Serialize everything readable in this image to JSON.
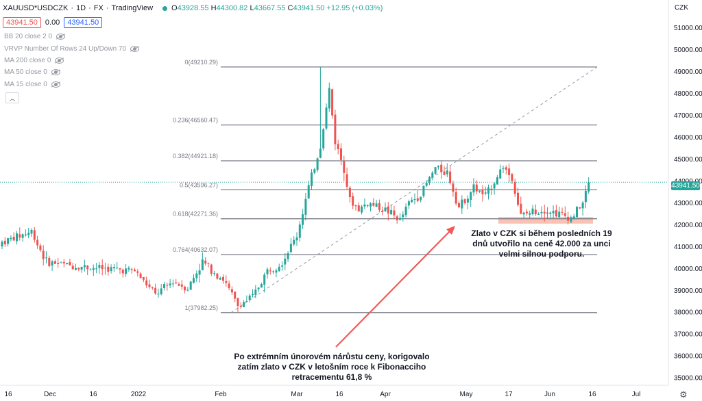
{
  "header": {
    "symbol": "XAUUSD*USDCZK",
    "interval": "1D",
    "exchange": "FX",
    "source": "TradingView",
    "open_label": "O",
    "open": "43928.55",
    "high_label": "H",
    "high": "44300.82",
    "low_label": "L",
    "low": "43667.55",
    "close_label": "C",
    "close": "43941.50",
    "change": "+12.95 (+0.03%)"
  },
  "price_row": {
    "sell": "43941.50",
    "spread": "0.00",
    "buy": "43941.50"
  },
  "indicators": [
    "BB 20 close 2 0",
    "VRVP Number Of Rows 24 Up/Down 70",
    "MA 200 close 0",
    "MA 50 close 0",
    "MA 15 close 0"
  ],
  "collapse_icon": "chevron-up-icon",
  "annotations": {
    "note_right": "Zlato v CZK si během posledních 19 dnů utvořilo na ceně 42.000 za unci velmi silnou podporu.",
    "note_bottom": "Po extrémním únorovém nárůstu ceny, korigovalo zatím zlato v CZK v letošním roce k Fibonacciho retracementu 61,8 %"
  },
  "colors": {
    "up": "#26a69a",
    "down": "#ef5350",
    "fib_line": "#787b86",
    "trend": "#9598a1",
    "arrow": "#f05a5a",
    "support_zone": "rgba(244,143,120,0.55)"
  },
  "chart_data": {
    "type": "candlestick",
    "currency_label": "CZK",
    "current_price": "43941.50",
    "y_axis": {
      "ticks": [
        "51000.00",
        "50000.00",
        "49000.00",
        "48000.00",
        "47000.00",
        "46000.00",
        "45000.00",
        "44000.00",
        "43000.00",
        "42000.00",
        "41000.00",
        "40000.00",
        "39000.00",
        "38000.00",
        "37000.00",
        "36000.00",
        "35000.00"
      ],
      "ylim": [
        34800,
        51700
      ]
    },
    "x_axis": {
      "ticks": [
        "16",
        "Dec",
        "16",
        "2022",
        "Feb",
        "Mar",
        "16",
        "Apr",
        "May",
        "17",
        "Jun",
        "16",
        "Jul"
      ]
    },
    "fibonacci": [
      {
        "label": "0(49210.29)",
        "price": 49210.29
      },
      {
        "label": "0.236(46560.47)",
        "price": 46560.47
      },
      {
        "label": "0.382(44921.18)",
        "price": 44921.18
      },
      {
        "label": "0.5(43596.27)",
        "price": 43596.27
      },
      {
        "label": "0.618(42271.36)",
        "price": 42271.36
      },
      {
        "label": "0.764(40632.07)",
        "price": 40632.07
      },
      {
        "label": "1(37982.25)",
        "price": 37982.25
      }
    ],
    "support_zone": [
      42050,
      42350
    ],
    "anchors": [
      {
        "day": 0,
        "close": 41200
      },
      {
        "day": 10,
        "close": 41700
      },
      {
        "day": 15,
        "close": 40300
      },
      {
        "day": 25,
        "close": 40100
      },
      {
        "day": 35,
        "close": 40000
      },
      {
        "day": 45,
        "close": 39900
      },
      {
        "day": 52,
        "close": 38800
      },
      {
        "day": 58,
        "close": 39400
      },
      {
        "day": 63,
        "close": 39100
      },
      {
        "day": 68,
        "close": 40300
      },
      {
        "day": 75,
        "close": 39500
      },
      {
        "day": 80,
        "close": 38300
      },
      {
        "day": 85,
        "close": 38700
      },
      {
        "day": 90,
        "close": 39900
      },
      {
        "day": 95,
        "close": 40300
      },
      {
        "day": 100,
        "close": 41500
      },
      {
        "day": 104,
        "close": 43700
      },
      {
        "day": 108,
        "close": 45600
      },
      {
        "day": 111,
        "close": 48200
      },
      {
        "day": 113,
        "close": 45800
      },
      {
        "day": 116,
        "close": 44600
      },
      {
        "day": 118,
        "close": 43100
      },
      {
        "day": 121,
        "close": 42700
      },
      {
        "day": 124,
        "close": 43000
      },
      {
        "day": 128,
        "close": 42800
      },
      {
        "day": 131,
        "close": 42600
      },
      {
        "day": 135,
        "close": 42200
      },
      {
        "day": 138,
        "close": 43000
      },
      {
        "day": 142,
        "close": 43400
      },
      {
        "day": 147,
        "close": 44600
      },
      {
        "day": 151,
        "close": 44400
      },
      {
        "day": 155,
        "close": 42800
      },
      {
        "day": 160,
        "close": 43700
      },
      {
        "day": 164,
        "close": 43300
      },
      {
        "day": 170,
        "close": 44700
      },
      {
        "day": 173,
        "close": 44100
      },
      {
        "day": 176,
        "close": 42400
      },
      {
        "day": 180,
        "close": 42600
      },
      {
        "day": 184,
        "close": 42700
      },
      {
        "day": 189,
        "close": 42500
      },
      {
        "day": 193,
        "close": 42300
      },
      {
        "day": 197,
        "close": 43000
      },
      {
        "day": 199,
        "close": 43900
      }
    ]
  }
}
